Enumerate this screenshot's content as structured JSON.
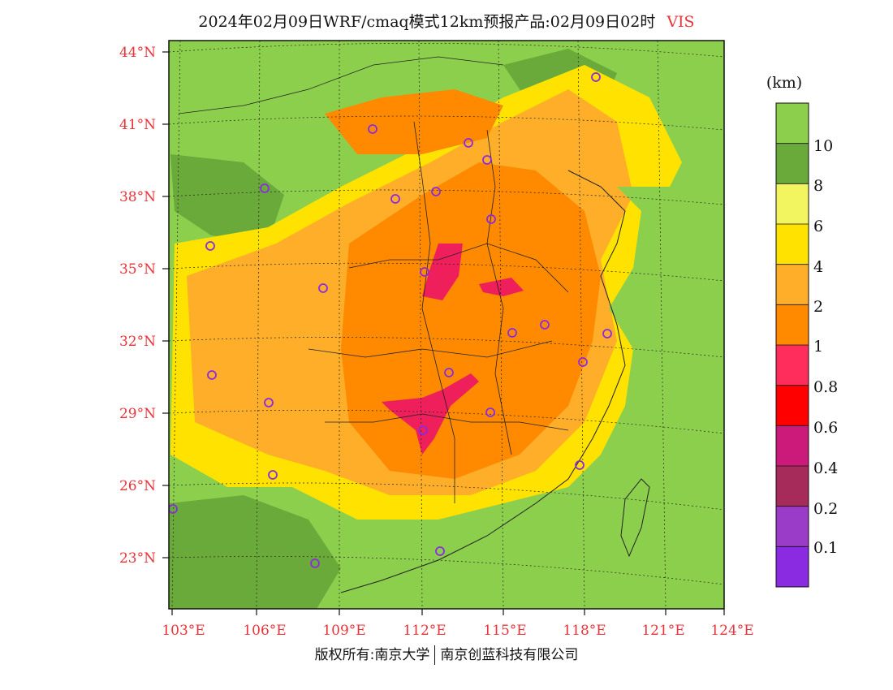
{
  "header": {
    "title": "2024年02月09日WRF/cmaq模式12km预报产品:02月09日02时",
    "variable": "VIS"
  },
  "map": {
    "lat_labels": [
      "44°N",
      "41°N",
      "38°N",
      "35°N",
      "32°N",
      "29°N",
      "26°N",
      "23°N"
    ],
    "lon_labels": [
      "103°E",
      "106°E",
      "109°E",
      "112°E",
      "115°E",
      "118°E",
      "121°E",
      "124°E"
    ],
    "colors": {
      "land_good": "#8ccf4d",
      "haze_1_2": "#ff8a00",
      "haze_2_4": "#ffae2a",
      "haze_4_6": "#ffe200",
      "fog": "#ee1f5a",
      "city_marker": "#8a2be2"
    }
  },
  "legend": {
    "unit": "(km)",
    "labels": [
      "10",
      "8",
      "6",
      "4",
      "2",
      "1",
      "0.8",
      "0.6",
      "0.4",
      "0.2",
      "0.1"
    ],
    "colors": [
      "#8ccf4d",
      "#6aaa3a",
      "#f2f560",
      "#ffe200",
      "#ffae2a",
      "#ff8a00",
      "#ff2d5c",
      "#ff0000",
      "#cc1a7a",
      "#a62b5a",
      "#9b3cc8",
      "#8a2be2"
    ]
  },
  "footer": {
    "left": "版权所有:南京大学",
    "right": "南京创蓝科技有限公司"
  }
}
